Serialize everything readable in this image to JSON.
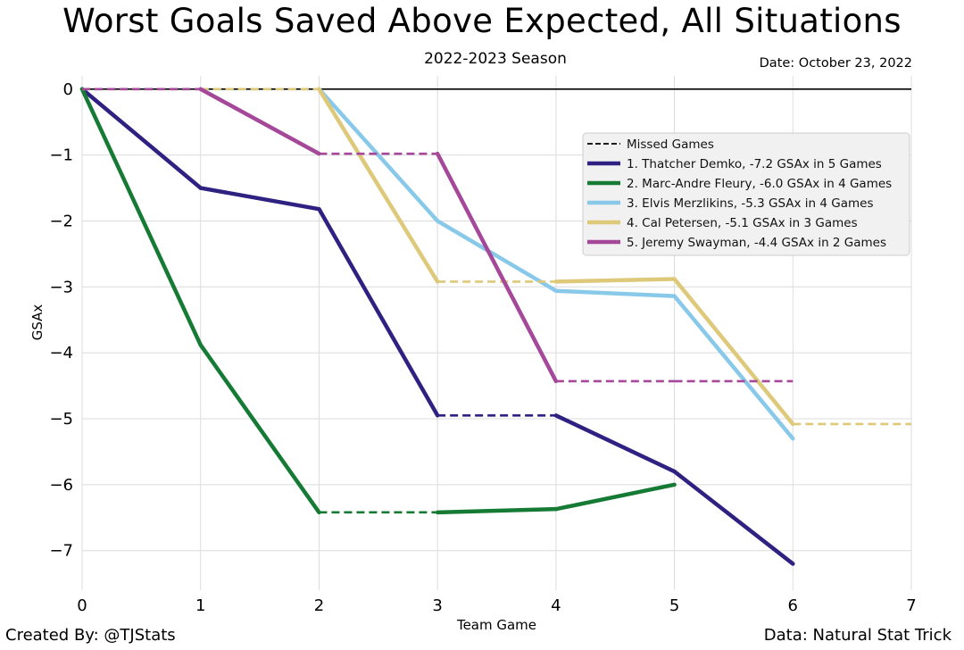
{
  "title": "Worst Goals Saved Above Expected, All Situations",
  "subtitle": "2022-2023 Season",
  "date": "Date: October 23, 2022",
  "credit_left": "Created By: @TJStats",
  "credit_right": "Data: Natural Stat Trick",
  "chart_data": {
    "type": "line",
    "title": "Worst Goals Saved Above Expected, All Situations",
    "xlabel": "Team Game",
    "ylabel": "GSAx",
    "xlim": [
      0,
      7
    ],
    "ylim": [
      -7.6,
      0.2
    ],
    "xticks": [
      0,
      1,
      2,
      3,
      4,
      5,
      6,
      7
    ],
    "yticks": [
      0,
      -1,
      -2,
      -3,
      -4,
      -5,
      -6,
      -7
    ],
    "ytick_labels": [
      "0",
      "−1",
      "−2",
      "−3",
      "−4",
      "−5",
      "−6",
      "−7"
    ],
    "grid": true,
    "legend_position": "upper-right",
    "missed_label": "Missed Games",
    "series": [
      {
        "name": "1. Thatcher Demko, -7.2 GSAx in 5 Games",
        "color": "#2e2181",
        "points": [
          [
            0,
            0
          ],
          [
            1,
            -1.5
          ],
          [
            2,
            -1.82
          ],
          [
            3,
            -4.95
          ],
          [
            4,
            -4.95
          ],
          [
            5,
            -5.8
          ],
          [
            6,
            -7.2
          ]
        ],
        "missed_segments": [
          [
            3,
            4
          ]
        ]
      },
      {
        "name": "2. Marc-Andre Fleury, -6.0 GSAx in 4 Games",
        "color": "#157a34",
        "points": [
          [
            0,
            0
          ],
          [
            1,
            -3.88
          ],
          [
            2,
            -6.42
          ],
          [
            3,
            -6.42
          ],
          [
            4,
            -6.37
          ],
          [
            5,
            -6.0
          ]
        ],
        "missed_segments": [
          [
            2,
            3
          ]
        ]
      },
      {
        "name": "3. Elvis Merzlikins, -5.3 GSAx in 4 Games",
        "color": "#88c9e9",
        "points": [
          [
            0,
            0
          ],
          [
            1,
            0
          ],
          [
            2,
            0
          ],
          [
            3,
            -2.0
          ],
          [
            4,
            -3.06
          ],
          [
            5,
            -3.14
          ],
          [
            6,
            -5.3
          ]
        ],
        "missed_segments": [
          [
            0,
            2
          ]
        ]
      },
      {
        "name": "4. Cal Petersen, -5.1 GSAx in 3 Games",
        "color": "#dec97a",
        "points": [
          [
            0,
            0
          ],
          [
            1,
            0
          ],
          [
            2,
            0
          ],
          [
            3,
            -2.92
          ],
          [
            4,
            -2.92
          ],
          [
            5,
            -2.88
          ],
          [
            6,
            -5.08
          ],
          [
            7,
            -5.08
          ]
        ],
        "missed_segments": [
          [
            0,
            2
          ],
          [
            3,
            4
          ],
          [
            6,
            7
          ]
        ]
      },
      {
        "name": "5. Jeremy Swayman, -4.4 GSAx in 2 Games",
        "color": "#a5489a",
        "points": [
          [
            0,
            0
          ],
          [
            1,
            0
          ],
          [
            2,
            -0.98
          ],
          [
            3,
            -0.98
          ],
          [
            4,
            -4.43
          ],
          [
            5,
            -4.43
          ],
          [
            6,
            -4.43
          ]
        ],
        "missed_segments": [
          [
            0,
            1
          ],
          [
            2,
            3
          ],
          [
            4,
            6
          ]
        ]
      }
    ]
  }
}
